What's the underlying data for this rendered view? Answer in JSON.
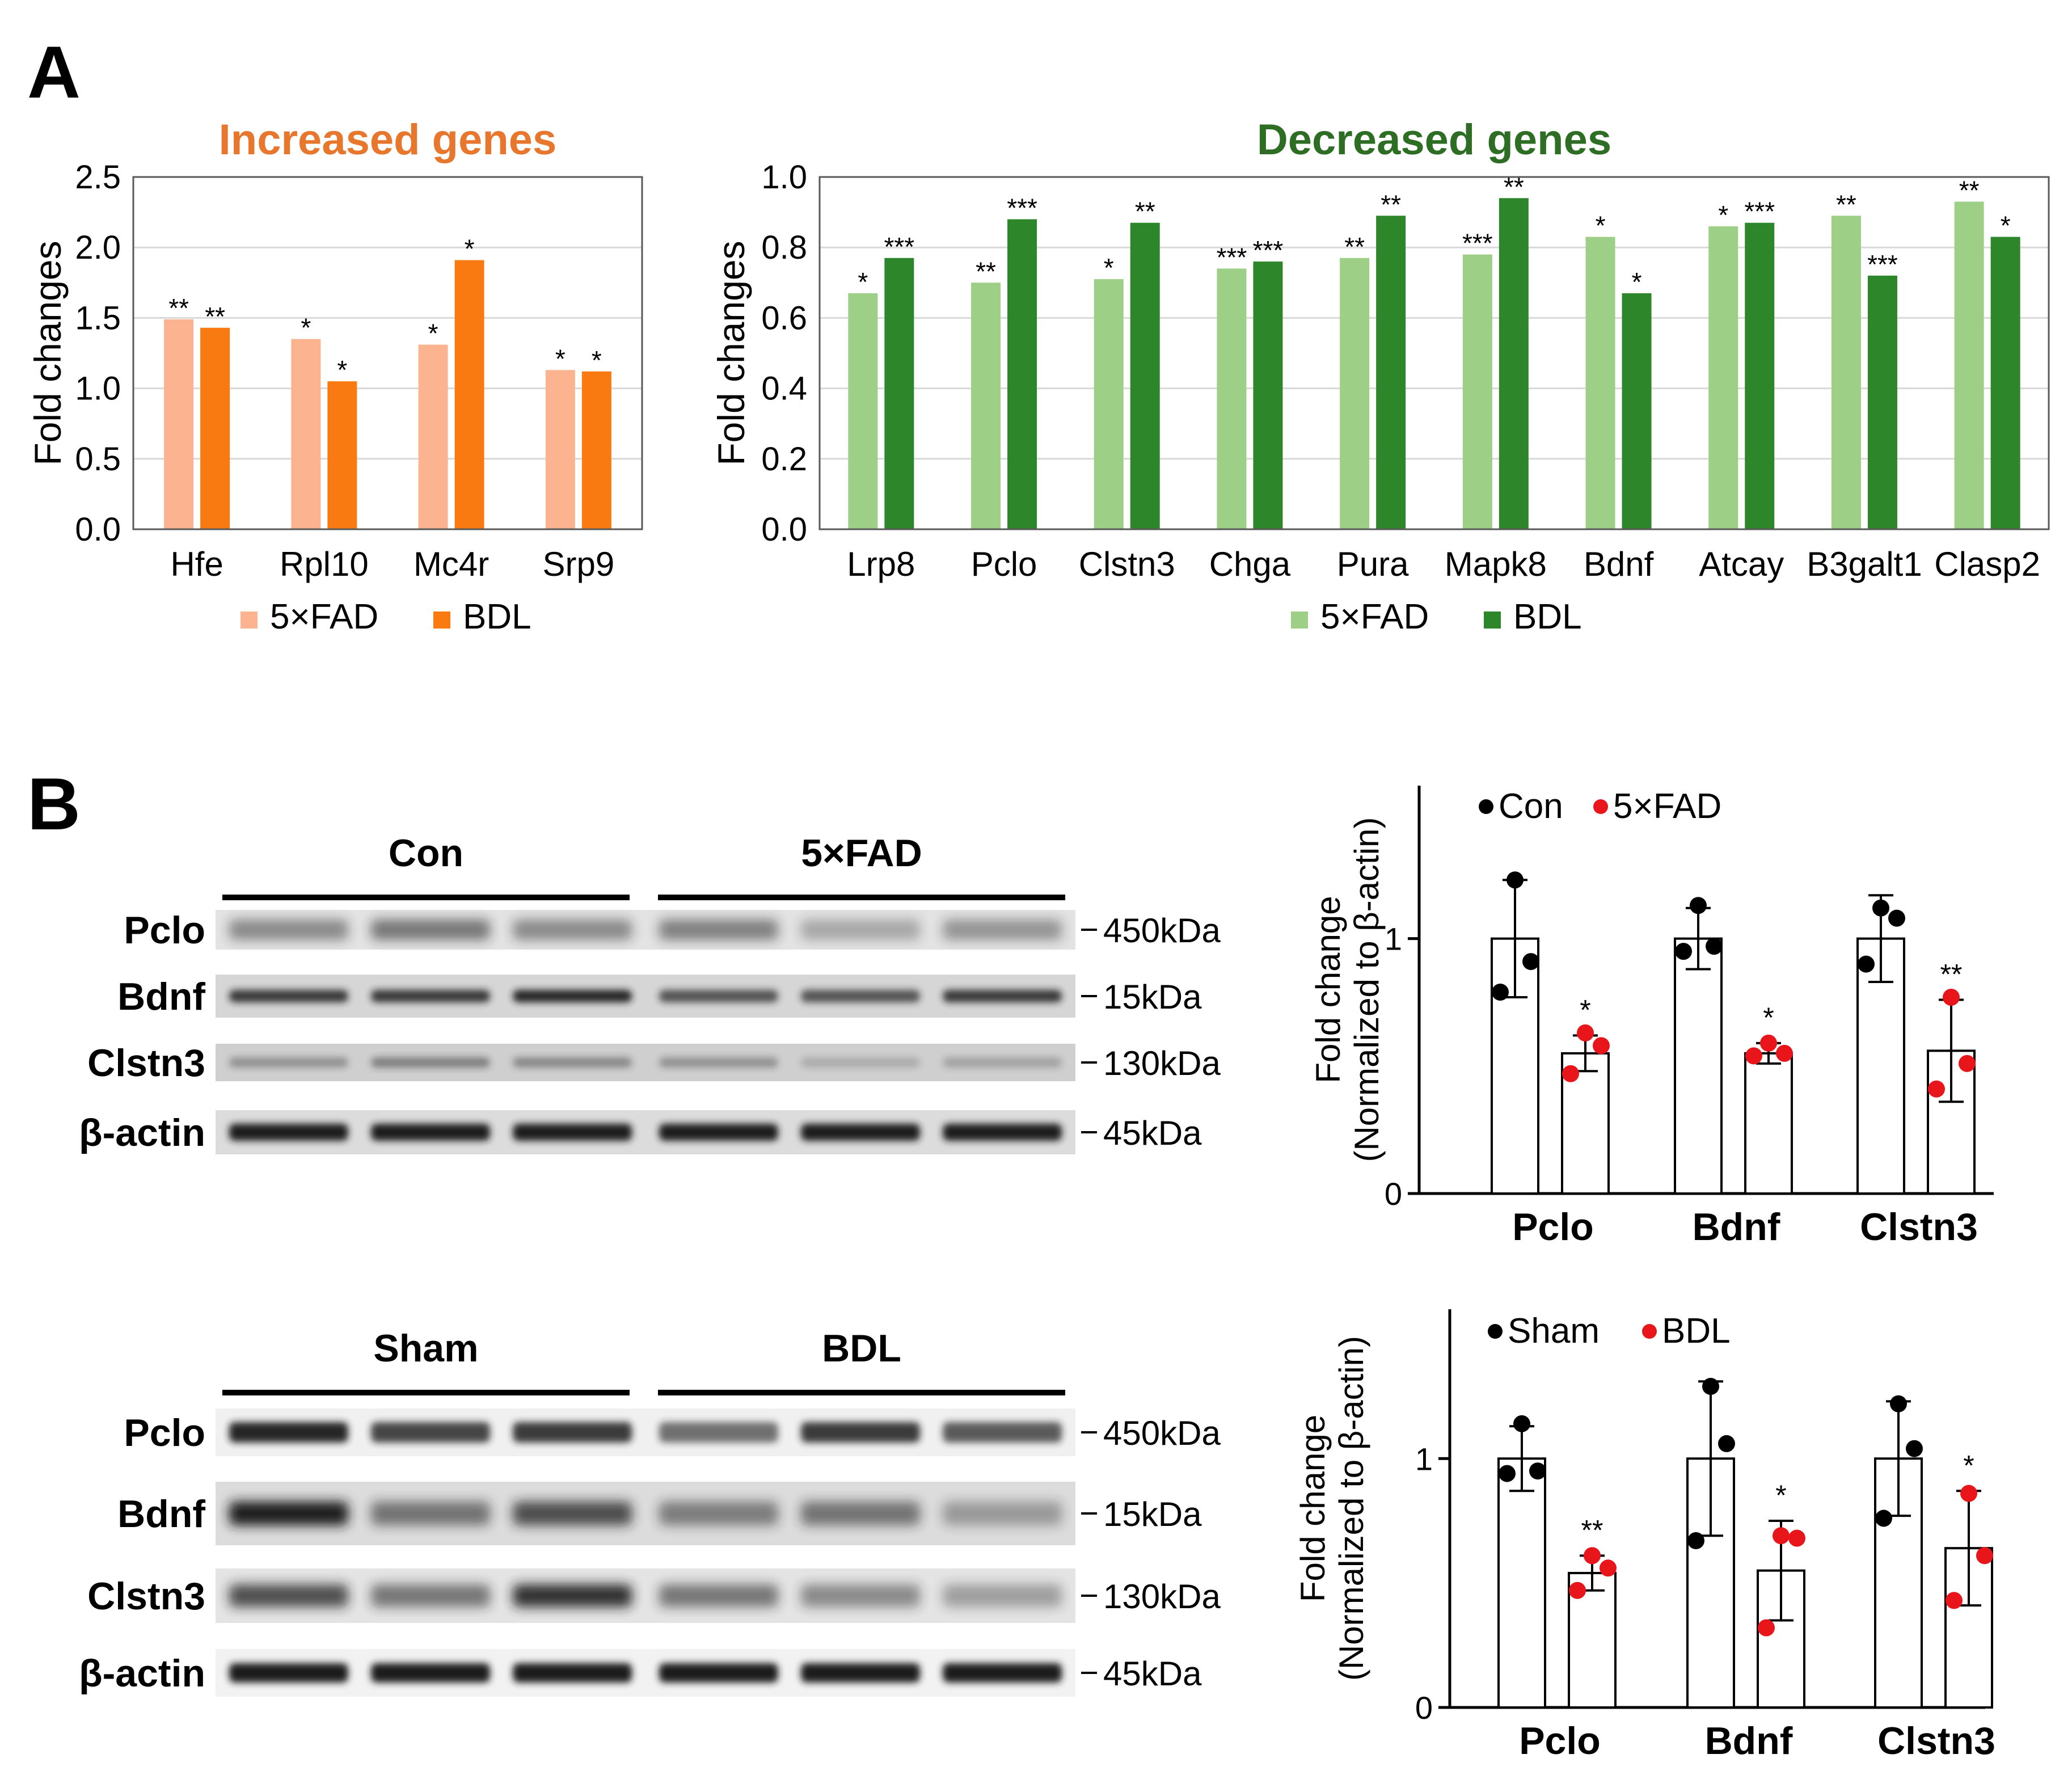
{
  "panel_labels": {
    "a": "A",
    "b": "B"
  },
  "chart_data": [
    {
      "id": "increased",
      "type": "bar",
      "title": "Increased genes",
      "title_color": "#e8772e",
      "ylabel": "Fold changes",
      "ylim": [
        0,
        2.5
      ],
      "yticks": [
        "0.0",
        "0.5",
        "1.0",
        "1.5",
        "2.0",
        "2.5"
      ],
      "categories": [
        "Hfe",
        "Rpl10",
        "Mc4r",
        "Srp9"
      ],
      "series": [
        {
          "name": "5×FAD",
          "color": "#fbb48f",
          "values": [
            1.49,
            1.35,
            1.31,
            1.13
          ],
          "sig": [
            "**",
            "*",
            "*",
            "*"
          ]
        },
        {
          "name": "BDL",
          "color": "#f97a10",
          "values": [
            1.43,
            1.05,
            1.91,
            1.12
          ],
          "sig": [
            "**",
            "*",
            "*",
            "*"
          ]
        }
      ]
    },
    {
      "id": "decreased",
      "type": "bar",
      "title": "Decreased genes",
      "title_color": "#2d6e24",
      "ylabel": "Fold changes",
      "ylim": [
        0,
        1.0
      ],
      "yticks": [
        "0.0",
        "0.2",
        "0.4",
        "0.6",
        "0.8",
        "1.0"
      ],
      "categories": [
        "Lrp8",
        "Pclo",
        "Clstn3",
        "Chga",
        "Pura",
        "Mapk8",
        "Bdnf",
        "Atcay",
        "B3galt1",
        "Clasp2"
      ],
      "series": [
        {
          "name": "5×FAD",
          "color": "#9ecf87",
          "values": [
            0.67,
            0.7,
            0.71,
            0.74,
            0.77,
            0.78,
            0.83,
            0.86,
            0.89,
            0.93
          ],
          "sig": [
            "*",
            "**",
            "*",
            "***",
            "**",
            "***",
            "*",
            "*",
            "**",
            "**"
          ]
        },
        {
          "name": "BDL",
          "color": "#2e862b",
          "values": [
            0.77,
            0.88,
            0.87,
            0.76,
            0.89,
            0.94,
            0.67,
            0.87,
            0.72,
            0.83
          ],
          "sig": [
            "***",
            "***",
            "**",
            "***",
            "**",
            "**",
            "*",
            "***",
            "***",
            "*"
          ]
        }
      ]
    },
    {
      "id": "wb_fad",
      "type": "bar",
      "ylabel": "Fold change",
      "ylabel2": "(Normalized to β-actin)",
      "ylim": [
        0,
        1.6
      ],
      "yticks": [
        "0",
        "1"
      ],
      "categories": [
        "Pclo",
        "Bdnf",
        "Clstn3"
      ],
      "series": [
        {
          "name": "Con",
          "color": "#000000",
          "values": [
            1.0,
            1.0,
            1.0
          ],
          "err": [
            0.23,
            0.12,
            0.17
          ],
          "points": [
            [
              1.23,
              0.91,
              0.79
            ],
            [
              1.13,
              0.97,
              0.95
            ],
            [
              1.12,
              1.08,
              0.9
            ]
          ]
        },
        {
          "name": "5×FAD",
          "color": "#e8151b",
          "values": [
            0.55,
            0.55,
            0.56
          ],
          "err": [
            0.07,
            0.04,
            0.2
          ],
          "points": [
            [
              0.63,
              0.58,
              0.47
            ],
            [
              0.59,
              0.55,
              0.54
            ],
            [
              0.77,
              0.51,
              0.41
            ]
          ],
          "sig": [
            "*",
            "*",
            "**"
          ]
        }
      ]
    },
    {
      "id": "wb_bdl",
      "type": "bar",
      "ylabel": "Fold change",
      "ylabel2": "(Normalized to β-actin)",
      "ylim": [
        0,
        1.6
      ],
      "yticks": [
        "0",
        "1"
      ],
      "categories": [
        "Pclo",
        "Bdnf",
        "Clstn3"
      ],
      "series": [
        {
          "name": "Sham",
          "color": "#000000",
          "values": [
            1.0,
            1.0,
            1.0
          ],
          "err": [
            0.13,
            0.31,
            0.23
          ],
          "points": [
            [
              1.14,
              0.95,
              0.94
            ],
            [
              1.29,
              1.06,
              0.67
            ],
            [
              1.22,
              1.04,
              0.76
            ]
          ]
        },
        {
          "name": "BDL",
          "color": "#e8151b",
          "values": [
            0.54,
            0.55,
            0.64
          ],
          "err": [
            0.07,
            0.2,
            0.23
          ],
          "points": [
            [
              0.61,
              0.56,
              0.47
            ],
            [
              0.69,
              0.68,
              0.32
            ],
            [
              0.86,
              0.61,
              0.43
            ]
          ],
          "sig": [
            "**",
            "*",
            "*"
          ]
        }
      ]
    }
  ],
  "blot_top": {
    "groups": [
      "Con",
      "5×FAD"
    ],
    "rows": [
      {
        "protein": "Pclo",
        "size": "450kDa"
      },
      {
        "protein": "Bdnf",
        "size": "15kDa"
      },
      {
        "protein": "Clstn3",
        "size": "130kDa"
      },
      {
        "protein": "β-actin",
        "size": "45kDa"
      }
    ]
  },
  "blot_bottom": {
    "groups": [
      "Sham",
      "BDL"
    ],
    "rows": [
      {
        "protein": "Pclo",
        "size": "450kDa"
      },
      {
        "protein": "Bdnf",
        "size": "15kDa"
      },
      {
        "protein": "Clstn3",
        "size": "130kDa"
      },
      {
        "protein": "β-actin",
        "size": "45kDa"
      }
    ]
  }
}
